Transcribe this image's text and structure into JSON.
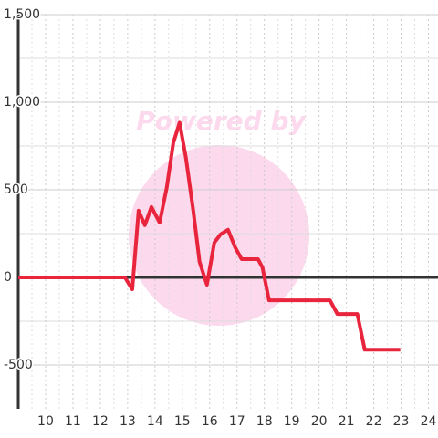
{
  "chart_data": {
    "type": "line",
    "watermark": "Powered by",
    "x": [
      9,
      12.9,
      13.17,
      13.4,
      13.63,
      13.87,
      14.17,
      14.43,
      14.67,
      14.9,
      15.13,
      15.4,
      15.63,
      15.9,
      16.17,
      16.4,
      16.67,
      16.93,
      17.17,
      17.77,
      17.93,
      18.17,
      20.4,
      20.67,
      21.4,
      21.67,
      22.97
    ],
    "series": [
      {
        "color": "#e8253c",
        "values": [
          0,
          0,
          -68,
          381,
          298,
          402,
          313,
          512,
          768,
          883,
          684,
          381,
          89,
          -42,
          199,
          246,
          272,
          172,
          104,
          104,
          57,
          -131,
          -131,
          -209,
          -209,
          -413,
          -413
        ]
      }
    ],
    "xlim": [
      9,
      24.35
    ],
    "ylim": [
      -750,
      1500
    ],
    "xticks": [
      10,
      11,
      12,
      13,
      14,
      15,
      16,
      17,
      18,
      19,
      20,
      21,
      22,
      23,
      24
    ],
    "yticks": [
      -500,
      0,
      500,
      {
        "value": 1000,
        "label": "1,000"
      },
      {
        "value": 1500,
        "label": "1,500"
      }
    ],
    "grid": true
  }
}
